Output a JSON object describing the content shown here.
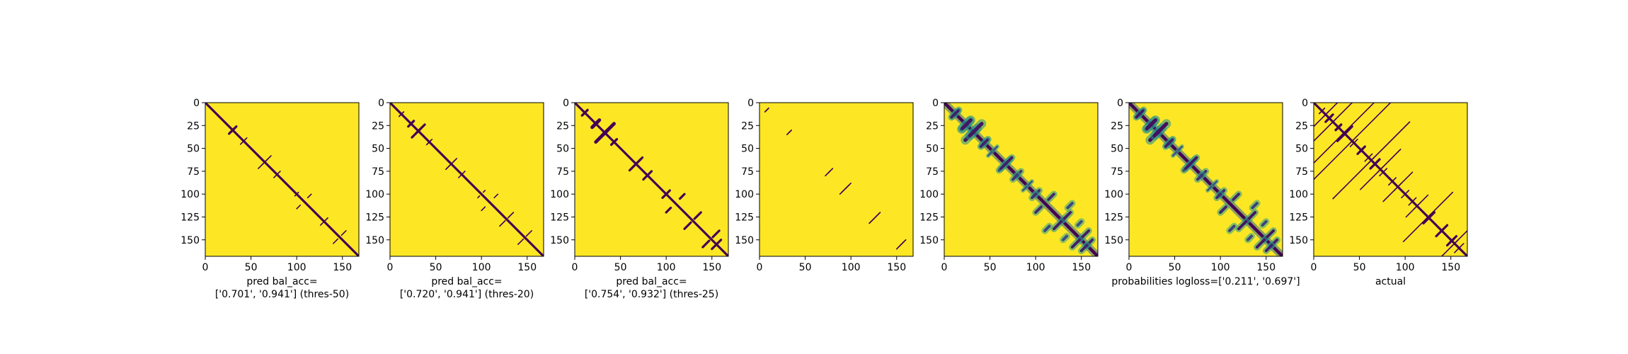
{
  "figure": {
    "background": "#ffffff",
    "colormap": [
      "#440154",
      "#3b528b",
      "#21918c",
      "#5ec962",
      "#fde725"
    ]
  },
  "chart_data": [
    {
      "type": "heatmap",
      "xlim": [
        0,
        168
      ],
      "ylim": [
        168,
        0
      ],
      "xticks": [
        "0",
        "50",
        "100",
        "150"
      ],
      "yticks": [
        "0",
        "25",
        "50",
        "75",
        "100",
        "125",
        "150"
      ],
      "xlabel": [
        "pred bal_acc=",
        "['0.701', '0.941'] (thres-50)"
      ],
      "pattern": "binary",
      "diagonal": true,
      "features": [
        [
          28,
          32,
          12,
          2,
          1
        ],
        [
          40,
          44,
          11,
          1,
          1
        ],
        [
          62,
          68,
          20,
          1,
          1
        ],
        [
          75,
          82,
          8,
          1,
          1
        ],
        [
          98,
          102,
          2,
          1,
          1
        ],
        [
          126,
          134,
          6,
          1,
          1
        ],
        [
          140,
          154,
          10,
          1,
          1
        ],
        [
          100,
          116,
          8,
          1,
          1
        ]
      ]
    },
    {
      "type": "heatmap",
      "xlim": [
        0,
        168
      ],
      "ylim": [
        168,
        0
      ],
      "xticks": [
        "0",
        "50",
        "100",
        "150"
      ],
      "yticks": [
        "0",
        "25",
        "50",
        "75",
        "100",
        "125",
        "150"
      ],
      "xlabel": [
        "pred bal_acc=",
        "['0.720', '0.941'] (thres-20)"
      ],
      "pattern": "binary",
      "diagonal": true,
      "features": [
        [
          10,
          15,
          10,
          1,
          1
        ],
        [
          20,
          26,
          12,
          2,
          1
        ],
        [
          28,
          34,
          20,
          2,
          1
        ],
        [
          40,
          46,
          10,
          1,
          1
        ],
        [
          62,
          72,
          22,
          1,
          1
        ],
        [
          75,
          82,
          8,
          1,
          1
        ],
        [
          96,
          104,
          4,
          1,
          1
        ],
        [
          120,
          135,
          12,
          1,
          1
        ],
        [
          140,
          155,
          12,
          1,
          1
        ],
        [
          100,
          118,
          8,
          1,
          1
        ]
      ]
    },
    {
      "type": "heatmap",
      "xlim": [
        0,
        168
      ],
      "ylim": [
        168,
        0
      ],
      "xticks": [
        "0",
        "50",
        "100",
        "150"
      ],
      "yticks": [
        "0",
        "25",
        "50",
        "75",
        "100",
        "125",
        "150"
      ],
      "xlabel": [
        "pred bal_acc=",
        "['0.754', '0.932'] (thres-25)"
      ],
      "pattern": "binary",
      "diagonal": true,
      "features": [
        [
          8,
          14,
          12,
          2,
          1
        ],
        [
          20,
          26,
          14,
          3,
          1
        ],
        [
          30,
          36,
          26,
          3,
          1
        ],
        [
          40,
          46,
          12,
          2,
          1
        ],
        [
          62,
          72,
          24,
          2,
          1
        ],
        [
          75,
          84,
          10,
          2,
          1
        ],
        [
          96,
          104,
          6,
          2,
          1
        ],
        [
          120,
          138,
          14,
          2,
          1
        ],
        [
          140,
          158,
          14,
          2,
          1
        ],
        [
          100,
          120,
          10,
          2,
          1
        ],
        [
          150,
          160,
          8,
          2,
          1
        ]
      ]
    },
    {
      "type": "heatmap",
      "xlim": [
        0,
        168
      ],
      "ylim": [
        168,
        0
      ],
      "xticks": [
        "0",
        "50",
        "100",
        "150"
      ],
      "yticks": [
        "0",
        "25",
        "50",
        "75",
        "100",
        "125",
        "150"
      ],
      "xlabel": [
        "",
        ""
      ],
      "pattern": "binary",
      "diagonal": false,
      "features": [
        [
          6,
          10,
          8,
          1,
          1
        ],
        [
          30,
          35,
          8,
          1,
          1
        ],
        [
          72,
          80,
          10,
          1,
          1
        ],
        [
          150,
          160,
          16,
          1,
          1
        ],
        [
          88,
          100,
          20,
          1,
          1
        ],
        [
          120,
          132,
          22,
          1,
          1
        ]
      ]
    },
    {
      "type": "heatmap",
      "xlim": [
        0,
        168
      ],
      "ylim": [
        168,
        0
      ],
      "xticks": [
        "0",
        "50",
        "100",
        "150"
      ],
      "yticks": [
        "0",
        "25",
        "50",
        "75",
        "100",
        "125",
        "150"
      ],
      "xlabel": [
        "",
        ""
      ],
      "pattern": "prob",
      "diagonal": true,
      "features": [
        [
          8,
          16,
          14,
          3,
          0.9
        ],
        [
          20,
          28,
          18,
          4,
          0.95
        ],
        [
          28,
          36,
          26,
          4,
          0.95
        ],
        [
          40,
          48,
          14,
          3,
          0.85
        ],
        [
          62,
          72,
          24,
          3,
          0.9
        ],
        [
          75,
          84,
          10,
          3,
          0.7
        ],
        [
          96,
          104,
          8,
          3,
          0.75
        ],
        [
          120,
          138,
          16,
          3,
          0.9
        ],
        [
          140,
          158,
          16,
          3,
          0.9
        ],
        [
          100,
          120,
          12,
          3,
          0.8
        ],
        [
          150,
          162,
          12,
          3,
          0.85
        ],
        [
          110,
          140,
          10,
          3,
          0.6
        ],
        [
          130,
          150,
          8,
          3,
          0.55
        ],
        [
          48,
          58,
          8,
          2,
          0.5
        ],
        [
          86,
          96,
          8,
          2,
          0.45
        ]
      ]
    },
    {
      "type": "heatmap",
      "xlim": [
        0,
        168
      ],
      "ylim": [
        168,
        0
      ],
      "xticks": [
        "0",
        "50",
        "100",
        "150"
      ],
      "yticks": [
        "0",
        "25",
        "50",
        "75",
        "100",
        "125",
        "150"
      ],
      "xlabel": [
        "probabilities logloss=['0.211', '0.697']",
        ""
      ],
      "pattern": "prob",
      "diagonal": true,
      "features": [
        [
          8,
          16,
          14,
          3,
          0.95
        ],
        [
          20,
          28,
          18,
          4,
          1
        ],
        [
          28,
          36,
          26,
          4,
          1
        ],
        [
          40,
          48,
          14,
          3,
          0.9
        ],
        [
          62,
          72,
          24,
          3,
          0.95
        ],
        [
          75,
          84,
          10,
          3,
          0.75
        ],
        [
          96,
          104,
          8,
          3,
          0.8
        ],
        [
          120,
          138,
          16,
          3,
          0.95
        ],
        [
          140,
          158,
          16,
          3,
          0.95
        ],
        [
          100,
          120,
          12,
          3,
          0.85
        ],
        [
          150,
          162,
          12,
          3,
          0.9
        ],
        [
          110,
          140,
          10,
          3,
          0.65
        ],
        [
          130,
          150,
          8,
          3,
          0.6
        ],
        [
          48,
          58,
          8,
          2,
          0.5
        ],
        [
          86,
          96,
          8,
          2,
          0.5
        ]
      ]
    },
    {
      "type": "heatmap",
      "xlim": [
        0,
        168
      ],
      "ylim": [
        168,
        0
      ],
      "xticks": [
        "0",
        "50",
        "100",
        "150"
      ],
      "yticks": [
        "0",
        "25",
        "50",
        "75",
        "100",
        "125",
        "150"
      ],
      "xlabel": [
        "actual",
        ""
      ],
      "pattern": "binary",
      "diagonal": true,
      "features": [
        [
          6,
          12,
          10,
          1,
          1
        ],
        [
          14,
          20,
          14,
          2,
          1
        ],
        [
          24,
          30,
          12,
          2,
          1
        ],
        [
          30,
          38,
          24,
          2,
          1
        ],
        [
          40,
          48,
          10,
          1,
          1
        ],
        [
          48,
          56,
          12,
          2,
          1
        ],
        [
          56,
          64,
          10,
          1,
          1
        ],
        [
          62,
          72,
          20,
          2,
          1
        ],
        [
          72,
          80,
          8,
          1,
          1
        ],
        [
          82,
          90,
          10,
          1,
          1
        ],
        [
          96,
          104,
          8,
          1,
          1
        ],
        [
          104,
          112,
          10,
          1,
          1
        ],
        [
          120,
          132,
          14,
          2,
          1
        ],
        [
          134,
          146,
          12,
          2,
          1
        ],
        [
          146,
          156,
          14,
          2,
          1
        ],
        [
          154,
          164,
          10,
          1,
          1
        ],
        [
          70,
          76,
          50,
          1,
          1
        ],
        [
          88,
          96,
          40,
          1,
          1
        ],
        [
          110,
          116,
          30,
          1,
          1
        ],
        [
          122,
          128,
          60,
          1,
          1
        ],
        [
          60,
          66,
          90,
          1,
          1
        ],
        [
          40,
          44,
          120,
          1,
          1
        ],
        [
          30,
          36,
          140,
          1,
          1
        ],
        [
          18,
          24,
          70,
          1,
          1
        ],
        [
          10,
          16,
          100,
          1,
          1
        ],
        [
          150,
          158,
          50,
          1,
          1
        ]
      ]
    }
  ]
}
